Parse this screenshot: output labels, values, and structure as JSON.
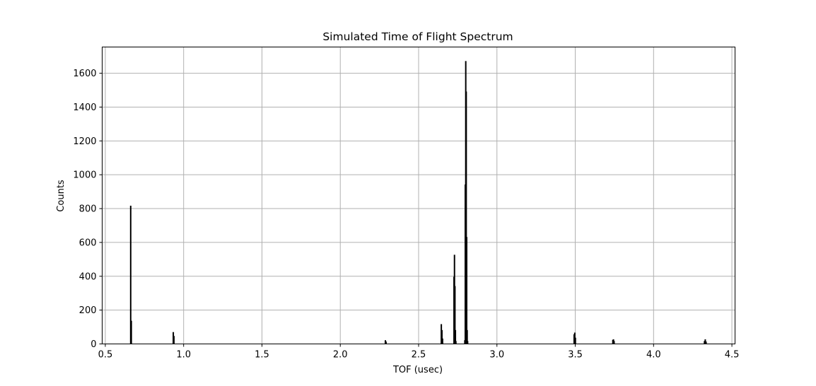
{
  "chart_data": {
    "type": "bar",
    "title": "Simulated Time of Flight Spectrum",
    "xlabel": "TOF (usec)",
    "ylabel": "Counts",
    "xlim": [
      0.48,
      4.52
    ],
    "ylim": [
      0,
      1755
    ],
    "xticks": [
      0.5,
      1.0,
      1.5,
      2.0,
      2.5,
      3.0,
      3.5,
      4.0,
      4.5
    ],
    "xtick_labels": [
      "0.5",
      "1.0",
      "1.5",
      "2.0",
      "2.5",
      "3.0",
      "3.5",
      "4.0",
      "4.5"
    ],
    "yticks": [
      0,
      200,
      400,
      600,
      800,
      1000,
      1200,
      1400,
      1600
    ],
    "ytick_labels": [
      "0",
      "200",
      "400",
      "600",
      "800",
      "1000",
      "1200",
      "1400",
      "1600"
    ],
    "grid": true,
    "bar_color": "#000000",
    "series": [
      {
        "x": [
          0.662,
          0.666,
          0.934,
          0.938,
          2.288,
          2.292,
          2.645,
          2.649,
          2.653,
          2.726,
          2.729,
          2.732,
          2.735,
          2.738,
          2.795,
          2.798,
          2.801,
          2.804,
          2.807,
          2.81,
          2.813,
          3.493,
          3.497,
          3.501,
          3.74,
          3.744,
          3.748,
          4.325,
          4.33,
          4.335
        ],
        "values": [
          815,
          135,
          68,
          45,
          20,
          12,
          115,
          80,
          30,
          395,
          525,
          340,
          80,
          15,
          20,
          940,
          1670,
          1490,
          630,
          80,
          15,
          55,
          65,
          35,
          22,
          25,
          15,
          15,
          25,
          12
        ]
      }
    ]
  }
}
